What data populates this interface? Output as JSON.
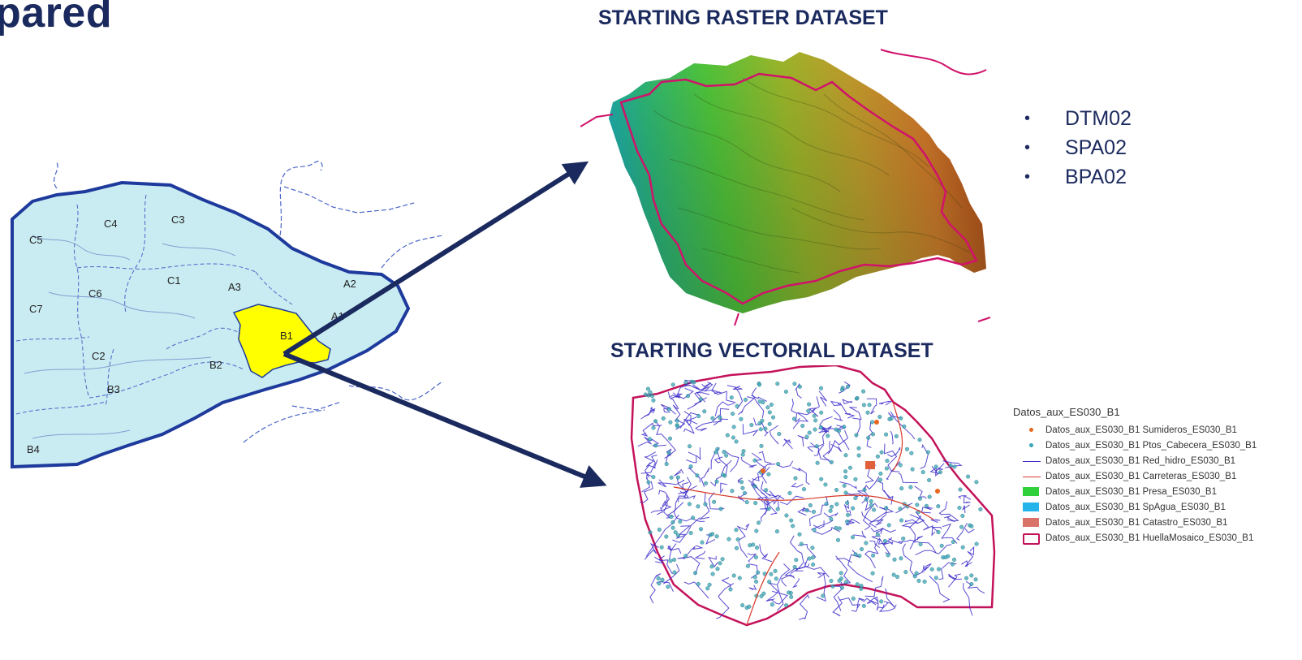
{
  "slide": {
    "title": "pared"
  },
  "raster_section": {
    "heading": "STARTING RASTER DATASET",
    "items": [
      "DTM02",
      "SPA02",
      "BPA02"
    ]
  },
  "vector_section": {
    "heading": "STARTING VECTORIAL DATASET"
  },
  "basin_map": {
    "labels": [
      "C5",
      "C4",
      "C3",
      "C1",
      "A3",
      "A2",
      "C6",
      "C7",
      "A1",
      "B1",
      "B2",
      "C2",
      "B3",
      "B4"
    ],
    "highlighted_zone": "B1",
    "colors": {
      "basin_fill": "#c9ecf2",
      "basin_border": "#1d3a9c",
      "highlight": "#ffff00"
    }
  },
  "legend": {
    "title": "Datos_aux_ES030_B1",
    "items": [
      {
        "label": "Datos_aux_ES030_B1 Sumideros_ES030_B1",
        "symbol": "dot",
        "color": "#e8671c"
      },
      {
        "label": "Datos_aux_ES030_B1 Ptos_Cabecera_ES030_B1",
        "symbol": "dot",
        "color": "#3aa6b7"
      },
      {
        "label": "Datos_aux_ES030_B1 Red_hidro_ES030_B1",
        "symbol": "line",
        "color": "#3b2cc9"
      },
      {
        "label": "Datos_aux_ES030_B1 Carreteras_ES030_B1",
        "symbol": "line",
        "color": "#d93a2a"
      },
      {
        "label": "Datos_aux_ES030_B1 Presa_ES030_B1",
        "symbol": "fill",
        "color": "#2fd03a"
      },
      {
        "label": "Datos_aux_ES030_B1 SpAgua_ES030_B1",
        "symbol": "fill",
        "color": "#27b4ea"
      },
      {
        "label": "Datos_aux_ES030_B1 Catastro_ES030_B1",
        "symbol": "fill",
        "color": "#d9736a"
      },
      {
        "label": "Datos_aux_ES030_B1 HuellaMosaico_ES030_B1",
        "symbol": "outline",
        "color": "#c4125a"
      }
    ]
  },
  "colors": {
    "arrow": "#1b2a5e",
    "heading": "#1b2a5e"
  }
}
